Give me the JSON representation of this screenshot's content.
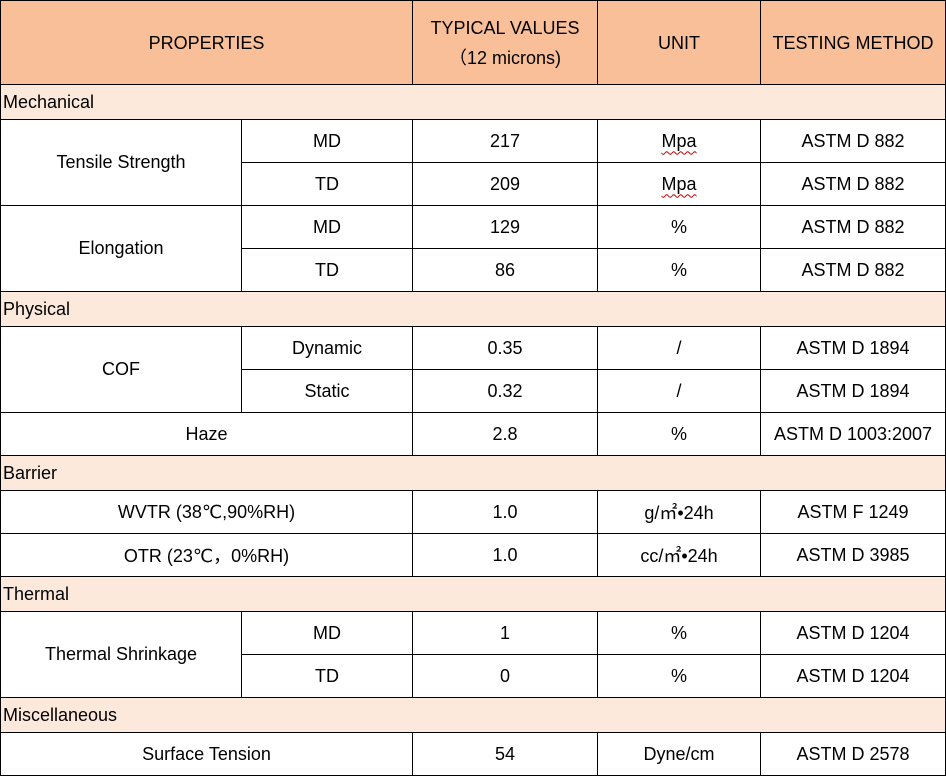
{
  "header": {
    "properties": "PROPERTIES",
    "typical_values": "TYPICAL VALUES",
    "typical_values_sub": "（12 microns)",
    "unit": "UNIT",
    "testing_method": "TESTING METHOD"
  },
  "sections": {
    "mechanical": {
      "title": "Mechanical",
      "tensile": {
        "name": "Tensile Strength",
        "md": {
          "dir": "MD",
          "value": "217",
          "unit": "Mpa",
          "method": "ASTM D 882"
        },
        "td": {
          "dir": "TD",
          "value": "209",
          "unit": "Mpa",
          "method": "ASTM D 882"
        }
      },
      "elongation": {
        "name": "Elongation",
        "md": {
          "dir": "MD",
          "value": "129",
          "unit": "%",
          "method": "ASTM D 882"
        },
        "td": {
          "dir": "TD",
          "value": "86",
          "unit": "%",
          "method": "ASTM D 882"
        }
      }
    },
    "physical": {
      "title": "Physical",
      "cof": {
        "name": "COF",
        "dynamic": {
          "dir": "Dynamic",
          "value": "0.35",
          "unit": "/",
          "method": "ASTM D 1894"
        },
        "static": {
          "dir": "Static",
          "value": "0.32",
          "unit": "/",
          "method": "ASTM D 1894"
        }
      },
      "haze": {
        "name": "Haze",
        "value": "2.8",
        "unit": "%",
        "method": "ASTM D 1003:2007"
      }
    },
    "barrier": {
      "title": "Barrier",
      "wvtr": {
        "name": "WVTR (38℃,90%RH)",
        "value": "1.0",
        "unit": "g/㎡•24h",
        "method": "ASTM F 1249"
      },
      "otr": {
        "name": "OTR (23℃，0%RH)",
        "value": "1.0",
        "unit": "cc/㎡•24h",
        "method": "ASTM D 3985"
      }
    },
    "thermal": {
      "title": "Thermal",
      "shrinkage": {
        "name": "Thermal Shrinkage",
        "md": {
          "dir": "MD",
          "value": "1",
          "unit": "%",
          "method": "ASTM D 1204"
        },
        "td": {
          "dir": "TD",
          "value": "0",
          "unit": "%",
          "method": "ASTM D 1204"
        }
      }
    },
    "misc": {
      "title": "Miscellaneous",
      "surface": {
        "name": "Surface Tension",
        "value": "54",
        "unit": "Dyne/cm",
        "method": "ASTM D 2578"
      }
    }
  },
  "colors": {
    "header_bg": "#f9bf99",
    "section_bg": "#fde9dc",
    "border": "#000000"
  }
}
